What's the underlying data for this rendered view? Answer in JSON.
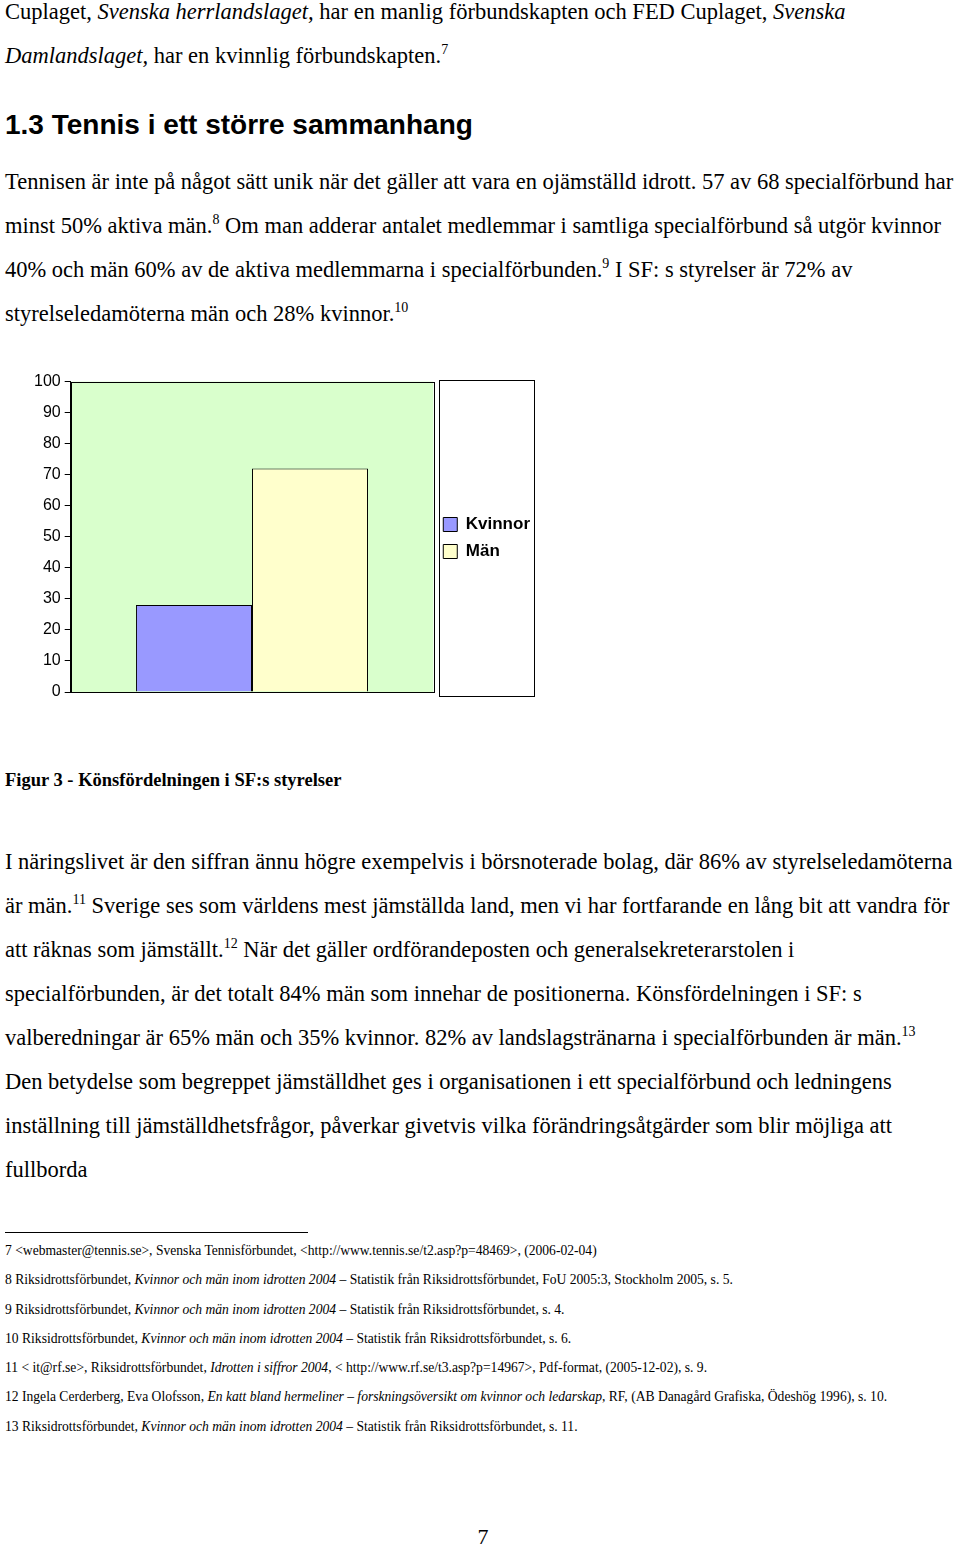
{
  "paragraph_top": [
    "Cuplaget, ",
    {
      "italic": "Svenska herrlandslaget,"
    },
    " har en manlig förbundskapten och FED Cuplaget, ",
    {
      "italic": "Svenska Damlandslaget,"
    },
    " har en kvinnlig förbundskapten.",
    {
      "sup": "7"
    }
  ],
  "heading": "1.3 Tennis i ett större sammanhang",
  "paragraph_1": [
    "Tennisen är inte på något sätt unik när det gäller att vara en ojämställd idrott. 57 av 68 specialförbund har minst 50% aktiva män.",
    {
      "sup": "8"
    },
    " Om man adderar antalet medlemmar i samtliga specialförbund så utgör kvinnor 40% och män 60% av de aktiva medlemmarna i specialförbunden.",
    {
      "sup": "9"
    },
    " I SF: s styrelser är 72% av styrelseledamöterna män och 28% kvinnor.",
    {
      "sup": "10"
    }
  ],
  "chart_data": {
    "type": "bar",
    "categories": [
      null
    ],
    "series": [
      {
        "name": "Kvinnor",
        "color": "#9999ff",
        "values": [
          28
        ]
      },
      {
        "name": "Män",
        "color": "#ffffcc",
        "values": [
          72
        ]
      }
    ],
    "ylim": [
      0,
      100
    ],
    "yticks": [
      0,
      10,
      20,
      30,
      40,
      50,
      60,
      70,
      80,
      90,
      100
    ],
    "grid": false,
    "legend": "right",
    "tick_labels": "y"
  },
  "caption": "Figur 3 - Könsfördelningen i SF:s styrelser",
  "paragraph_2": [
    "I näringslivet är den siffran ännu högre exempelvis i börsnoterade bolag, där 86% av styrelseledamöterna är män.",
    {
      "sup": "11"
    },
    " Sverige ses som världens mest jämställda land, men vi har fortfarande en lång bit att vandra för att räknas som jämställt.",
    {
      "sup": "12"
    },
    " När det gäller ordförandeposten och generalsekreterarstolen i specialförbunden, är det totalt 84% män som innehar de positionerna. Könsfördelningen i SF: s valberedningar är 65% män och 35% kvinnor. 82% av landslagstränarna i specialförbunden är män.",
    {
      "sup": "13"
    },
    " Den betydelse som begreppet jämställdhet ges i organisationen i ett specialförbund och ledningens inställning till jämställdhetsfrågor, påverkar givetvis vilka förändringsåtgärder som blir möjliga att fullborda"
  ],
  "footnotes": [
    [
      "7 <webmaster@tennis.se>, Svenska Tennisförbundet, <http://www.tennis.se/t2.asp?p=48469>, (2006-02-04)"
    ],
    [
      "8 Riksidrottsförbundet, ",
      {
        "italic": "Kvinnor och män inom idrotten 2004"
      },
      " – Statistik från Riksidrottsförbundet, FoU 2005:3, Stockholm 2005, s. 5."
    ],
    [
      "9 Riksidrottsförbundet, ",
      {
        "italic": "Kvinnor och män inom idrotten 2004"
      },
      " – Statistik från Riksidrottsförbundet, s. 4."
    ],
    [
      "10 Riksidrottsförbundet, ",
      {
        "italic": "Kvinnor och män inom idrotten 2004"
      },
      " – Statistik från Riksidrottsförbundet, s. 6."
    ],
    [
      "11 < it@rf.se>, Riksidrottsförbundet, ",
      {
        "italic": "Idrotten i siffror 2004"
      },
      ", < http://www.rf.se/t3.asp?p=14967>, Pdf-format, (2005-12-02), s. 9."
    ],
    [
      "12 Ingela Cerderberg, Eva Olofsson, ",
      {
        "italic": "En katt bland hermeliner – forskningsöversikt om kvinnor och ledarskap"
      },
      ", RF, (AB Danagård Grafiska, Ödeshög 1996), s. 10."
    ],
    [
      "13 Riksidrottsförbundet, ",
      {
        "italic": "Kvinnor och män inom idrotten 2004"
      },
      " – Statistik från Riksidrottsförbundet, s. 11."
    ]
  ],
  "page_number": "7"
}
